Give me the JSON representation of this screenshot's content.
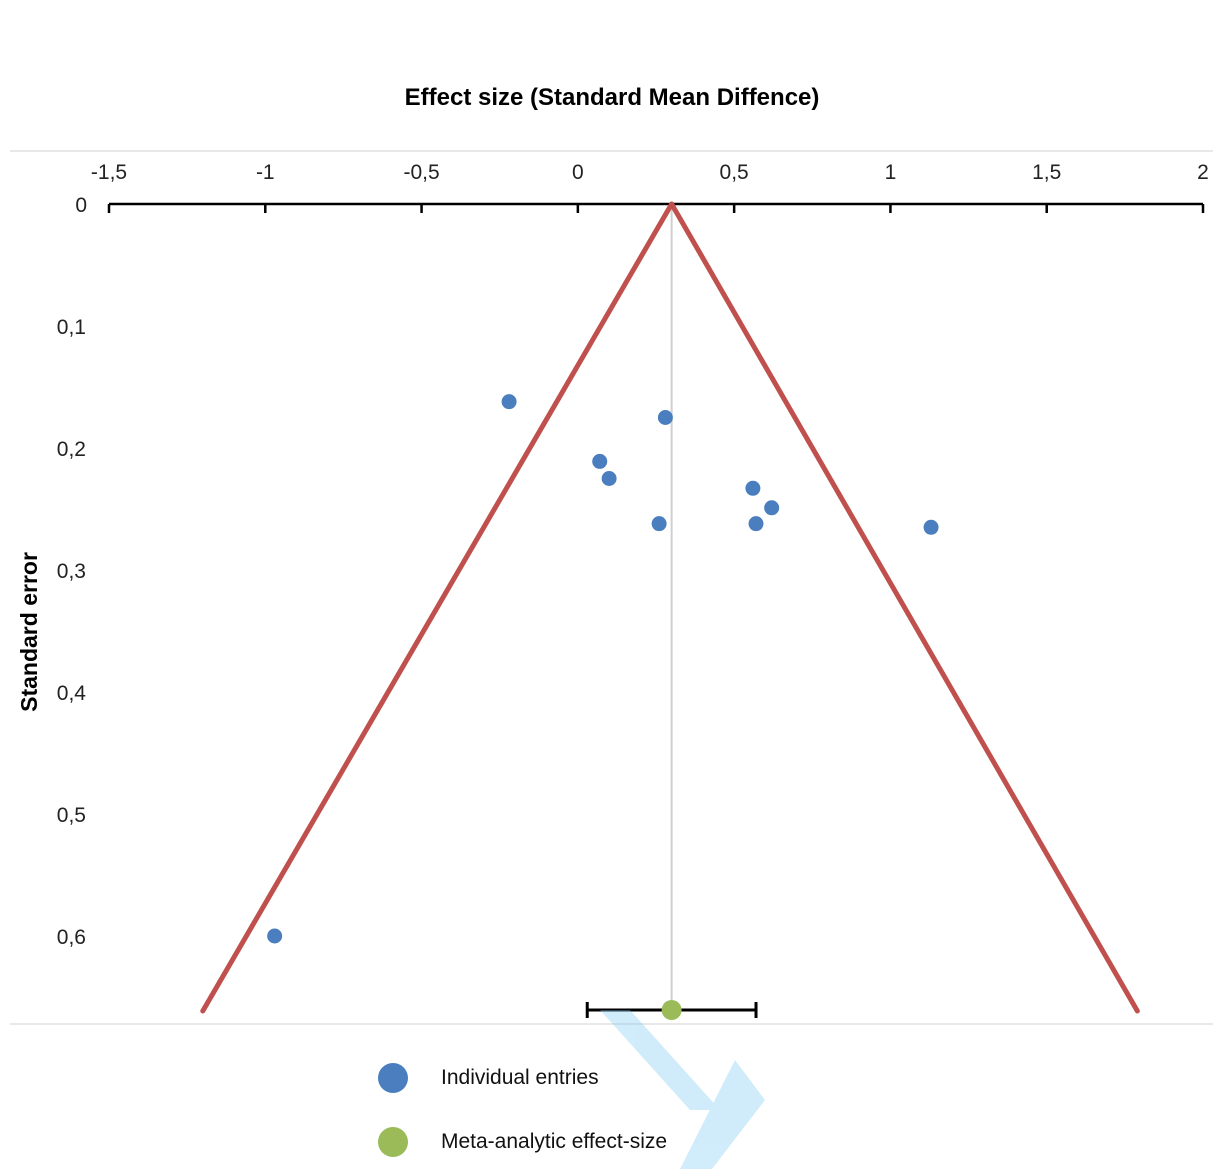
{
  "chart_data": {
    "type": "scatter",
    "title": "Effect size (Standard Mean Diffence)",
    "xlabel": "Effect size (Standard Mean Diffence)",
    "ylabel": "Standard error",
    "xlim": [
      -1.5,
      2
    ],
    "ylim": [
      0,
      0.66
    ],
    "y_inverted": true,
    "x_axis_position": "top",
    "x_ticks": [
      "-1,5",
      "-1",
      "-0,5",
      "0",
      "0,5",
      "1",
      "1,5",
      "2"
    ],
    "x_tick_values": [
      -1.5,
      -1,
      -0.5,
      0,
      0.5,
      1,
      1.5,
      2
    ],
    "y_ticks": [
      "0",
      "0,1",
      "0,2",
      "0,3",
      "0,4",
      "0,5",
      "0,6"
    ],
    "y_tick_values": [
      0,
      0.1,
      0.2,
      0.3,
      0.4,
      0.5,
      0.6
    ],
    "grid": false,
    "legend_position": "bottom",
    "series": [
      {
        "name": "Individual entries",
        "color": "#4a7ebf",
        "points": [
          {
            "x": -0.22,
            "y": 0.162
          },
          {
            "x": 0.28,
            "y": 0.175
          },
          {
            "x": 0.07,
            "y": 0.211
          },
          {
            "x": 0.1,
            "y": 0.225
          },
          {
            "x": 0.26,
            "y": 0.262
          },
          {
            "x": 0.56,
            "y": 0.233
          },
          {
            "x": 0.62,
            "y": 0.249
          },
          {
            "x": 0.57,
            "y": 0.262
          },
          {
            "x": 1.13,
            "y": 0.265
          },
          {
            "x": -0.97,
            "y": 0.6
          }
        ]
      },
      {
        "name": "Meta-analytic effect-size",
        "color": "#9bbb59",
        "points": [
          {
            "x": 0.3,
            "y": 0.66,
            "ci": [
              0.03,
              0.57
            ]
          }
        ]
      }
    ],
    "funnel": {
      "center": 0.3,
      "apex_y": 0,
      "base_y": 0.66,
      "left_x": -1.2,
      "right_x": 1.79,
      "color": "#c0504d"
    },
    "reference_line": {
      "x": 0.3,
      "color": "#cfcfcf"
    }
  }
}
